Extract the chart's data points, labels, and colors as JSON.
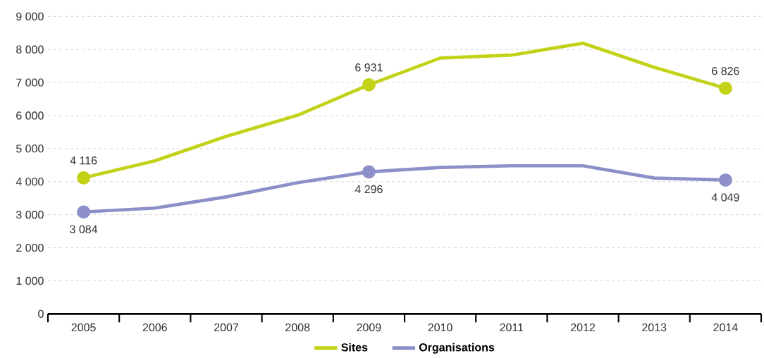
{
  "chart_data": {
    "type": "line",
    "categories": [
      "2005",
      "2006",
      "2007",
      "2008",
      "2009",
      "2010",
      "2011",
      "2012",
      "2013",
      "2014"
    ],
    "series": [
      {
        "name": "Sites",
        "color": "#c3d217",
        "values": [
          4116,
          4630,
          5370,
          6010,
          6931,
          7740,
          7830,
          8190,
          7460,
          6826
        ],
        "value_labels": [
          "4 116",
          null,
          null,
          null,
          "6 931",
          null,
          null,
          null,
          null,
          "6 826"
        ]
      },
      {
        "name": "Organisations",
        "color": "#8c8fc8",
        "values": [
          3084,
          3200,
          3540,
          3970,
          4296,
          4430,
          4480,
          4480,
          4110,
          4049
        ],
        "value_labels": [
          "3 084",
          null,
          null,
          null,
          "4 296",
          null,
          null,
          null,
          null,
          "4 049"
        ]
      }
    ],
    "ylim": [
      0,
      9000
    ],
    "yticks": [
      0,
      {
        "value": 1000,
        "label": "1 000"
      },
      {
        "value": 2000,
        "label": "2 000"
      },
      {
        "value": 3000,
        "label": "3 000"
      },
      {
        "value": 4000,
        "label": "4 000"
      },
      {
        "value": 5000,
        "label": "5 000"
      },
      {
        "value": 6000,
        "label": "6 000"
      },
      {
        "value": 7000,
        "label": "7 000"
      },
      {
        "value": 8000,
        "label": "8 000"
      },
      {
        "value": 9000,
        "label": "9 000"
      }
    ],
    "grid": "y",
    "legend": "bottom",
    "line_style": "solid"
  }
}
